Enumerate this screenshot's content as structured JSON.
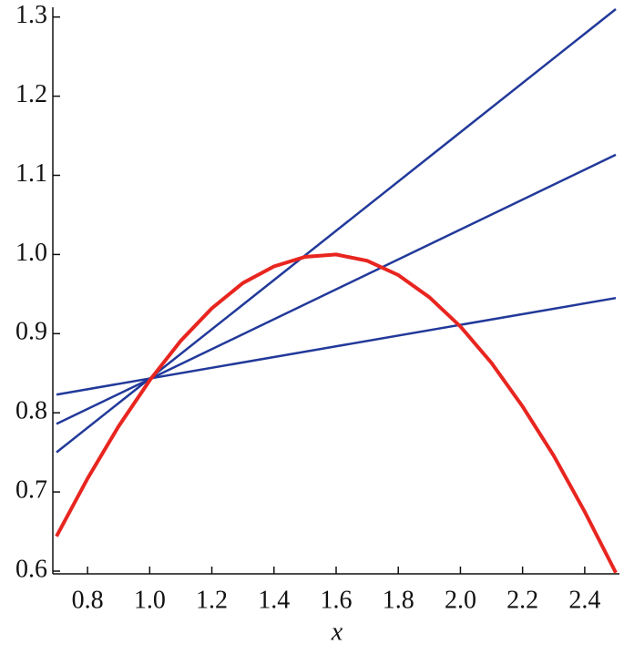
{
  "chart_data": {
    "type": "line",
    "x_label": "x",
    "xlim": [
      0.7,
      2.5
    ],
    "ylim": [
      0.6,
      1.31
    ],
    "xticks": [
      0.8,
      {
        "value": 1.0,
        "label": "1.0"
      },
      1.2,
      1.4,
      1.6,
      1.8,
      {
        "value": 2.0,
        "label": "2.0"
      },
      2.2,
      2.4
    ],
    "yticks": [
      0.6,
      0.7,
      0.8,
      0.9,
      {
        "value": 1.0,
        "label": "1.0"
      },
      1.1,
      1.2,
      1.3
    ],
    "series": [
      {
        "color": "#e8251f",
        "x": [
          0.7,
          0.8,
          0.9,
          1.0,
          1.1,
          1.2,
          1.3,
          1.4,
          1.5,
          1.6,
          1.7,
          1.8,
          1.9,
          2.0,
          2.1,
          2.2,
          2.3,
          2.4,
          2.5
        ],
        "values": [
          0.644,
          0.717,
          0.783,
          0.841,
          0.891,
          0.932,
          0.964,
          0.985,
          0.997,
          1.0,
          0.992,
          0.974,
          0.946,
          0.909,
          0.863,
          0.808,
          0.746,
          0.675,
          0.598
        ]
      },
      {
        "color": "#22399a",
        "x": [
          0.7,
          2.5
        ],
        "values": [
          0.75,
          1.31
        ]
      },
      {
        "color": "#22399a",
        "x": [
          0.7,
          2.5
        ],
        "values": [
          0.786,
          1.126
        ]
      },
      {
        "color": "#22399a",
        "x": [
          0.7,
          2.5
        ],
        "values": [
          0.823,
          0.945
        ]
      }
    ]
  }
}
